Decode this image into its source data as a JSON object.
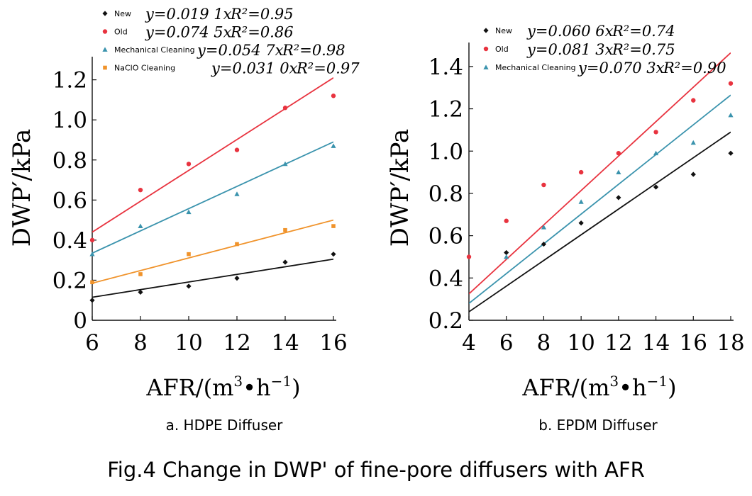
{
  "figure_caption": "Fig.4 Change in DWP' of fine-pore diffusers with AFR",
  "chart_data": [
    {
      "type": "scatter",
      "caption": "a. HDPE Diffuser",
      "xlabel_main": "AFR/(m",
      "xlabel_sup1": "3",
      "xlabel_mid": "•h",
      "xlabel_sup2": "−1",
      "xlabel_end": ")",
      "ylabel": "DWP′/kPa",
      "xlim": [
        6,
        16
      ],
      "ylim": [
        0,
        1.28
      ],
      "xticks": [
        6,
        8,
        10,
        12,
        14,
        16
      ],
      "xtick_labels": [
        "6",
        "8",
        "10",
        "12",
        "14",
        "16"
      ],
      "yticks": [
        0,
        0.2,
        0.4,
        0.6,
        0.8,
        1.0,
        1.2
      ],
      "ytick_labels": [
        "0",
        "0.2",
        "0.4",
        "0.6",
        "0.8",
        "1.0",
        "1.2"
      ],
      "legend_position": "top-left",
      "series": [
        {
          "name": "New",
          "color": "#111111",
          "marker": "diamond",
          "x": [
            6,
            8,
            10,
            12,
            14,
            16
          ],
          "y": [
            0.1,
            0.14,
            0.17,
            0.21,
            0.29,
            0.33
          ],
          "fit_eq": "y=0.019 1x",
          "fit_r2": "R²=0.95",
          "fit_line": [
            [
              6,
              0.115
            ],
            [
              16,
              0.305
            ]
          ]
        },
        {
          "name": "Old",
          "color": "#e8333f",
          "marker": "circle",
          "x": [
            6,
            8,
            10,
            12,
            14,
            16
          ],
          "y": [
            0.4,
            0.65,
            0.78,
            0.85,
            1.06,
            1.12
          ],
          "fit_eq": "y=0.074 5x",
          "fit_r2": "R²=0.86",
          "fit_line": [
            [
              6,
              0.44
            ],
            [
              16,
              1.21
            ]
          ]
        },
        {
          "name": "Mechanical Cleaning",
          "color": "#3a93ad",
          "marker": "triangle",
          "x": [
            6,
            8,
            10,
            12,
            14,
            16
          ],
          "y": [
            0.33,
            0.47,
            0.54,
            0.63,
            0.78,
            0.87
          ],
          "fit_eq": "y=0.054 7x",
          "fit_r2": "R²=0.98",
          "fit_line": [
            [
              6,
              0.335
            ],
            [
              16,
              0.89
            ]
          ]
        },
        {
          "name": "NaClO Cleaning",
          "color": "#f0932b",
          "marker": "square",
          "x": [
            6,
            8,
            10,
            12,
            14,
            16
          ],
          "y": [
            0.19,
            0.23,
            0.33,
            0.38,
            0.45,
            0.47
          ],
          "fit_eq": "y=0.031 0x",
          "fit_r2": "R²=0.97",
          "fit_line": [
            [
              6,
              0.185
            ],
            [
              16,
              0.5
            ]
          ]
        }
      ]
    },
    {
      "type": "scatter",
      "caption": "b. EPDM Diffuser",
      "xlabel_main": "AFR/(m",
      "xlabel_sup1": "3",
      "xlabel_mid": "•h",
      "xlabel_sup2": "−1",
      "xlabel_end": ")",
      "ylabel": "DWP′/kPa",
      "xlim": [
        4,
        18
      ],
      "ylim": [
        0.2,
        1.48
      ],
      "xticks": [
        4,
        6,
        8,
        10,
        12,
        14,
        16,
        18
      ],
      "xtick_labels": [
        "4",
        "6",
        "8",
        "10",
        "12",
        "14",
        "16",
        "18"
      ],
      "yticks": [
        0.2,
        0.4,
        0.6,
        0.8,
        1.0,
        1.2,
        1.4
      ],
      "ytick_labels": [
        "0.2",
        "0.4",
        "0.6",
        "0.8",
        "1.0",
        "1.2",
        "1.4"
      ],
      "legend_position": "top-left",
      "series": [
        {
          "name": "New",
          "color": "#111111",
          "marker": "diamond",
          "x": [
            6,
            8,
            10,
            12,
            14,
            16,
            18
          ],
          "y": [
            0.52,
            0.56,
            0.66,
            0.78,
            0.83,
            0.89,
            0.99
          ],
          "fit_eq": "y=0.060 6x",
          "fit_r2": "R²=0.74",
          "fit_line": [
            [
              4,
              0.24
            ],
            [
              18,
              1.09
            ]
          ]
        },
        {
          "name": "Old",
          "color": "#e8333f",
          "marker": "circle",
          "x": [
            4,
            6,
            8,
            10,
            12,
            14,
            16,
            18
          ],
          "y": [
            0.5,
            0.67,
            0.84,
            0.9,
            0.99,
            1.09,
            1.24,
            1.32
          ],
          "fit_eq": "y=0.081 3x",
          "fit_r2": "R²=0.75",
          "fit_line": [
            [
              4,
              0.325
            ],
            [
              18,
              1.465
            ]
          ]
        },
        {
          "name": "Mechanical Cleaning",
          "color": "#3a93ad",
          "marker": "triangle",
          "x": [
            6,
            8,
            10,
            12,
            14,
            16,
            18
          ],
          "y": [
            0.5,
            0.64,
            0.76,
            0.9,
            0.99,
            1.04,
            1.17
          ],
          "fit_eq": "y=0.070 3x",
          "fit_r2": "R²=0.90",
          "fit_line": [
            [
              4,
              0.28
            ],
            [
              18,
              1.265
            ]
          ]
        }
      ]
    }
  ]
}
